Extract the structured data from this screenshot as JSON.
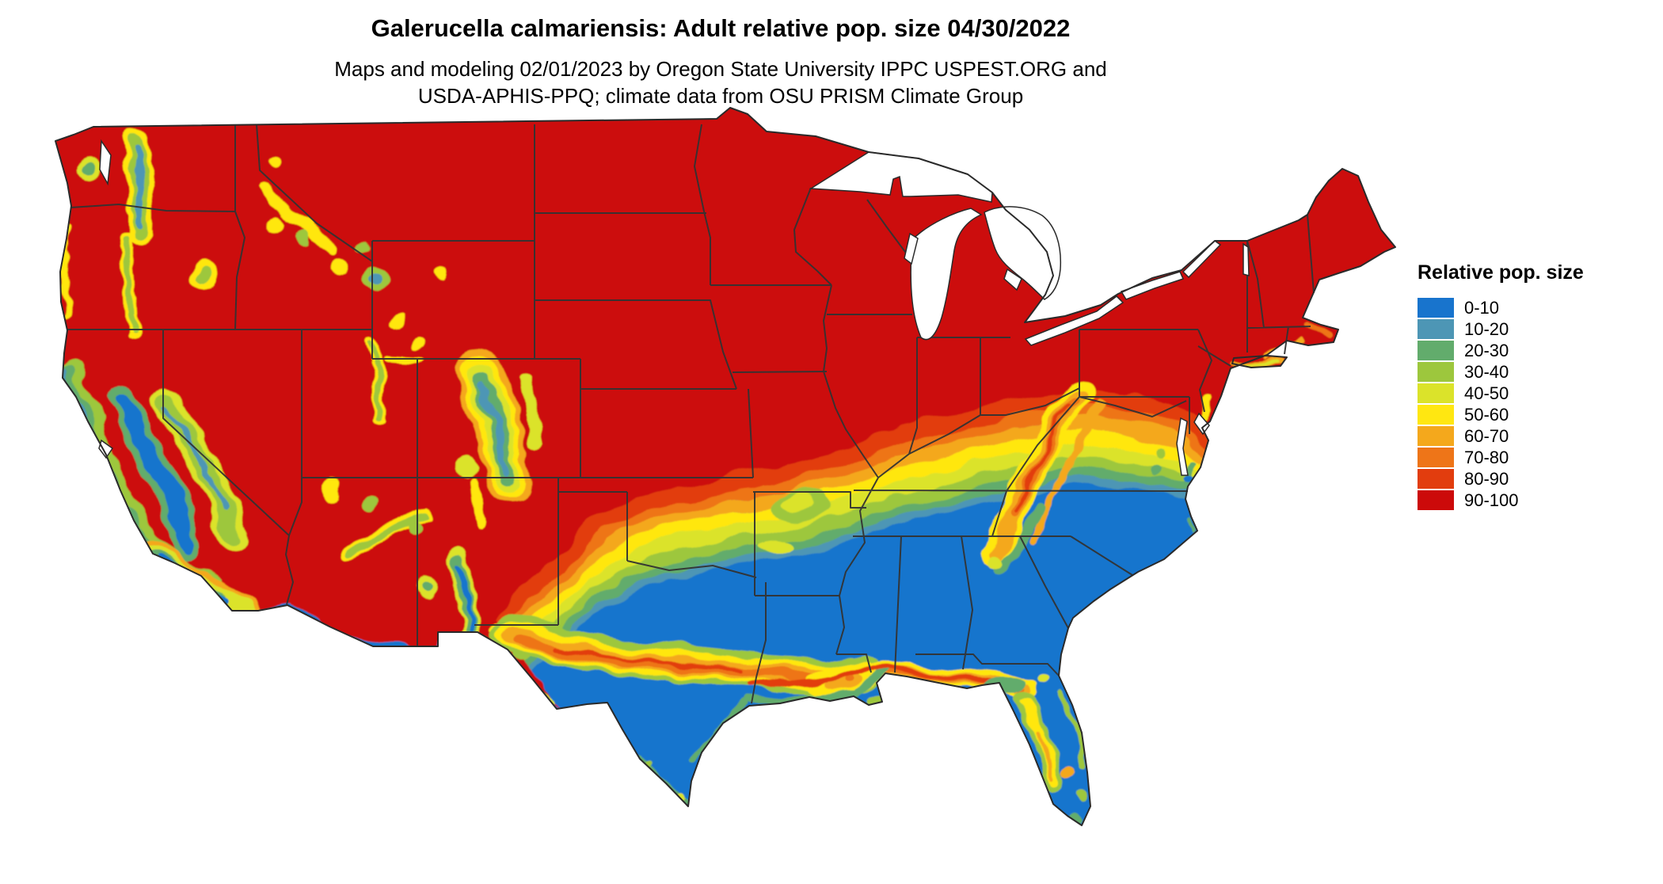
{
  "header": {
    "title": "Galerucella calmariensis: Adult relative pop. size 04/30/2022",
    "subtitle_line1": "Maps and modeling 02/01/2023 by Oregon State University IPPC USPEST.ORG and",
    "subtitle_line2": "USDA-APHIS-PPQ; climate data from OSU PRISM Climate Group"
  },
  "legend": {
    "title": "Relative pop. size",
    "items": [
      {
        "label": "0-10",
        "color": "#1874CD"
      },
      {
        "label": "10-20",
        "color": "#4D96B5"
      },
      {
        "label": "20-30",
        "color": "#62AC6C"
      },
      {
        "label": "30-40",
        "color": "#9DC73D"
      },
      {
        "label": "40-50",
        "color": "#DBE32A"
      },
      {
        "label": "50-60",
        "color": "#FFE711"
      },
      {
        "label": "60-70",
        "color": "#F4A81C"
      },
      {
        "label": "70-80",
        "color": "#EE7518"
      },
      {
        "label": "80-90",
        "color": "#E23D0E"
      },
      {
        "label": "90-100",
        "color": "#CC0A0A"
      }
    ]
  },
  "map": {
    "region": "Contiguous United States",
    "low_color": "#1874CD",
    "high_color": "#CC0A0A"
  }
}
